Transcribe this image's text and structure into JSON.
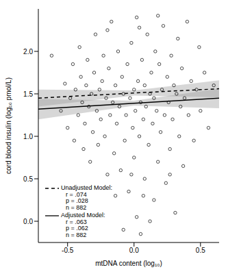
{
  "chart_data": {
    "type": "scatter",
    "x_label": "mtDNA content (log₁₀)",
    "y_label": "cord blood insulin (log₁₀ pmol/L)",
    "marker": "circle",
    "color": "#000000",
    "xlim": [
      -0.72,
      0.64
    ],
    "ylim": [
      -0.25,
      2.5
    ],
    "xticks": [
      {
        "value": -0.5,
        "label": "-0.5"
      },
      {
        "value": 0,
        "label": "0.0"
      },
      {
        "value": 0.5,
        "label": "0.5"
      }
    ],
    "yticks": [
      {
        "value": 0,
        "label": "0.0"
      },
      {
        "value": 0.5,
        "label": "0.5"
      },
      {
        "value": 1,
        "label": "1.0"
      },
      {
        "value": 1.5,
        "label": "1.5"
      },
      {
        "value": 2,
        "label": "2.0"
      }
    ],
    "legend": "lower left",
    "x": [
      -0.62,
      -0.55,
      -0.52,
      -0.5,
      -0.48,
      -0.46,
      -0.45,
      -0.44,
      -0.42,
      -0.41,
      -0.4,
      -0.39,
      -0.38,
      -0.37,
      -0.36,
      -0.35,
      -0.34,
      -0.33,
      -0.32,
      -0.31,
      -0.3,
      -0.29,
      -0.28,
      -0.27,
      -0.26,
      -0.25,
      -0.24,
      -0.23,
      -0.22,
      -0.21,
      -0.2,
      -0.19,
      -0.18,
      -0.17,
      -0.16,
      -0.15,
      -0.14,
      -0.13,
      -0.12,
      -0.11,
      -0.1,
      -0.09,
      -0.08,
      -0.07,
      -0.06,
      -0.05,
      -0.04,
      -0.03,
      -0.02,
      -0.01,
      0,
      0,
      0.01,
      0.02,
      0.02,
      0.03,
      0.04,
      0.05,
      0.05,
      0.06,
      0.07,
      0.08,
      0.08,
      0.09,
      0.1,
      0.11,
      0.12,
      0.13,
      0.14,
      0.15,
      0.15,
      0.16,
      0.17,
      0.18,
      0.19,
      0.2,
      0.21,
      0.22,
      0.23,
      0.24,
      0.25,
      0.26,
      0.27,
      0.28,
      0.29,
      0.3,
      0.31,
      0.32,
      0.33,
      0.34,
      0.35,
      0.36,
      0.37,
      0.38,
      0.4,
      0.41,
      0.43,
      0.45,
      0.47,
      0.49,
      0.5,
      0.53,
      0.56,
      0.6,
      -0.08,
      0.12,
      -0.14,
      0.04,
      -0.2,
      0.18,
      0.07,
      -0.02,
      0.27
    ],
    "values": [
      1.95,
      1.3,
      1.62,
      1.1,
      1.45,
      1.85,
      0.95,
      1.55,
      1.25,
      2.05,
      1.7,
      1.4,
      0.85,
      1.15,
      1.6,
      1.9,
      1.35,
      0.7,
      1.5,
      1.05,
      1.75,
      2.2,
      1.3,
      0.9,
      1.55,
      1.2,
      1.65,
      1.95,
      1.0,
      1.45,
      0.55,
      1.8,
      1.25,
      2.35,
      1.4,
      0.8,
      1.6,
      1.15,
      2.0,
      1.35,
      0.6,
      1.7,
      1.5,
      0.95,
      1.25,
      1.85,
      0.35,
      1.45,
      2.1,
      1.1,
      1.55,
      0.75,
      1.3,
      2.4,
      0.05,
      1.65,
      1.0,
      1.4,
      -0.15,
      1.9,
      1.2,
      0.5,
      1.6,
      1.35,
      2.2,
      0.9,
      1.5,
      1.75,
      1.15,
      0.25,
      1.45,
      2.0,
      1.3,
      0.7,
      1.85,
      1.05,
      1.55,
      2.3,
      1.25,
      0.45,
      1.7,
      1.4,
      0.85,
      1.95,
      1.2,
      1.6,
      0.1,
      1.5,
      2.15,
      1.0,
      1.35,
      1.8,
      0.65,
      1.45,
      2.35,
      1.25,
      1.65,
      0.95,
      1.55,
      2.05,
      1.3,
      1.75,
      1.1,
      1.6,
      -0.1,
      0.0,
      0.3,
      2.28,
      2.25,
      2.42,
      0.3,
      0.55,
      0.55
    ],
    "series": [
      {
        "name": "Unadjusted Model:",
        "line_style": "dashed",
        "color": "#000000",
        "x": [
          -0.72,
          0,
          0.64
        ],
        "values": [
          1.45,
          1.51,
          1.56
        ],
        "band_lower": [
          1.35,
          1.48,
          1.46
        ],
        "band_upper": [
          1.55,
          1.54,
          1.66
        ],
        "stats": [
          "r = .074",
          "p = .028",
          "n = 882"
        ]
      },
      {
        "name": "Adjusted Model:",
        "line_style": "solid",
        "color": "#000000",
        "x": [
          -0.72,
          0,
          0.64
        ],
        "values": [
          1.32,
          1.39,
          1.45
        ],
        "band_lower": [
          1.2,
          1.36,
          1.33
        ],
        "band_upper": [
          1.44,
          1.42,
          1.56
        ],
        "stats": [
          "r = .063",
          "p = .062",
          "n = 882"
        ]
      }
    ]
  }
}
